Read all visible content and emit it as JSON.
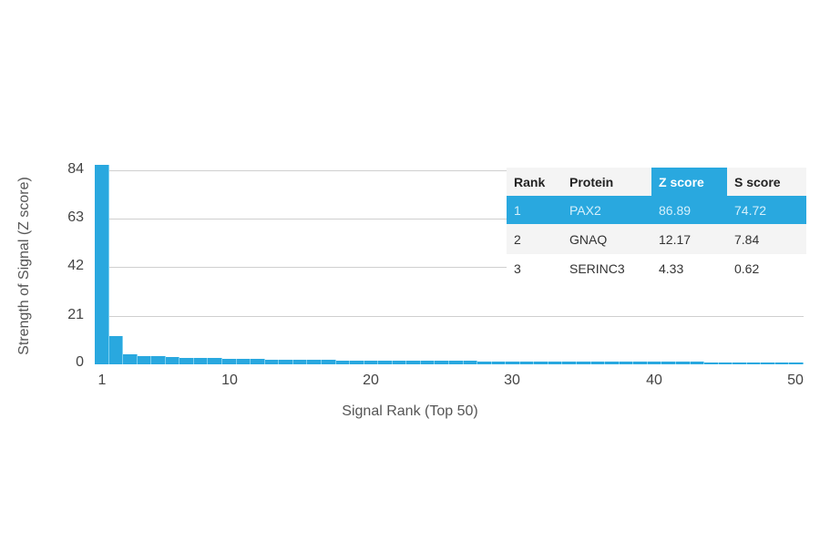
{
  "chart_data": {
    "type": "bar",
    "title": "",
    "xlabel": "Signal Rank (Top 50)",
    "ylabel": "Strength of Signal (Z score)",
    "ylim": [
      0,
      84
    ],
    "yticks": [
      0,
      21,
      42,
      63,
      84
    ],
    "xticks": [
      1,
      10,
      20,
      30,
      40,
      50
    ],
    "grid": true,
    "bar_color": "#29a8df",
    "categories": [
      1,
      2,
      3,
      4,
      5,
      6,
      7,
      8,
      9,
      10,
      11,
      12,
      13,
      14,
      15,
      16,
      17,
      18,
      19,
      20,
      21,
      22,
      23,
      24,
      25,
      26,
      27,
      28,
      29,
      30,
      31,
      32,
      33,
      34,
      35,
      36,
      37,
      38,
      39,
      40,
      41,
      42,
      43,
      44,
      45,
      46,
      47,
      48,
      49,
      50
    ],
    "values": [
      86.89,
      12.17,
      4.33,
      3.6,
      3.5,
      3.0,
      2.9,
      2.7,
      2.6,
      2.5,
      2.4,
      2.3,
      2.1,
      2.0,
      1.9,
      1.8,
      1.8,
      1.7,
      1.7,
      1.6,
      1.6,
      1.5,
      1.5,
      1.5,
      1.4,
      1.4,
      1.4,
      1.3,
      1.3,
      1.3,
      1.2,
      1.2,
      1.2,
      1.2,
      1.1,
      1.1,
      1.1,
      1.1,
      1.0,
      1.0,
      1.0,
      1.0,
      1.0,
      0.9,
      0.9,
      0.9,
      0.9,
      0.9,
      0.8,
      0.8
    ],
    "table": {
      "columns": [
        "Rank",
        "Protein",
        "Z score",
        "S score"
      ],
      "rows": [
        [
          "1",
          "PAX2",
          "86.89",
          "74.72"
        ],
        [
          "2",
          "GNAQ",
          "12.17",
          "7.84"
        ],
        [
          "3",
          "SERINC3",
          "4.33",
          "0.62"
        ]
      ],
      "highlighted_row": 0,
      "highlighted_column": "Z score"
    }
  },
  "axes": {
    "ylabel": "Strength of Signal (Z score)",
    "xlabel": "Signal Rank (Top 50)",
    "yticks": [
      "0",
      "21",
      "42",
      "63",
      "84"
    ],
    "xticks": [
      "1",
      "10",
      "20",
      "30",
      "40",
      "50"
    ]
  },
  "table": {
    "header": {
      "rank": "Rank",
      "protein": "Protein",
      "z": "Z score",
      "s": "S score"
    },
    "rows": [
      {
        "rank": "1",
        "protein": "PAX2",
        "z": "86.89",
        "s": "74.72"
      },
      {
        "rank": "2",
        "protein": "GNAQ",
        "z": "12.17",
        "s": "7.84"
      },
      {
        "rank": "3",
        "protein": "SERINC3",
        "z": "4.33",
        "s": "0.62"
      }
    ]
  }
}
